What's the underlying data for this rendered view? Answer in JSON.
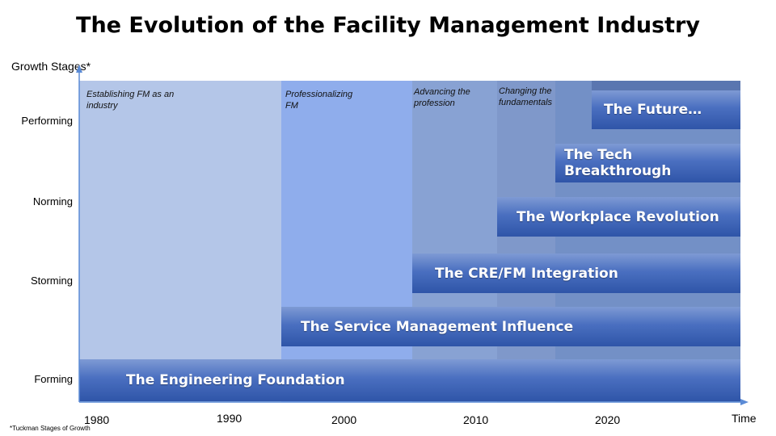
{
  "title": "The Evolution of the Facility Management Industry",
  "y_axis_label": "Growth Stages*",
  "x_axis_label": "Time",
  "stages": [
    "Performing",
    "Norming",
    "Storming",
    "Forming"
  ],
  "ticks": [
    "1980",
    "1990",
    "2000",
    "2010",
    "2020"
  ],
  "footnote": "*Tuckman Stages of Growth",
  "eras": [
    {
      "label": "Establishing FM as an industry",
      "color": "#b4c6e8"
    },
    {
      "label": "Professionalizing FM",
      "color": "#8fadec"
    },
    {
      "label": "Advancing the profession",
      "color": "#88a2d3"
    },
    {
      "label": "Changing the fundamentals",
      "color": "#7f98ca"
    }
  ],
  "bands": [
    "The Engineering Foundation",
    "The Service Management Influence",
    "The CRE/FM Integration",
    "The Workplace Revolution",
    "The Tech Breakthrough",
    "The Future…"
  ]
}
